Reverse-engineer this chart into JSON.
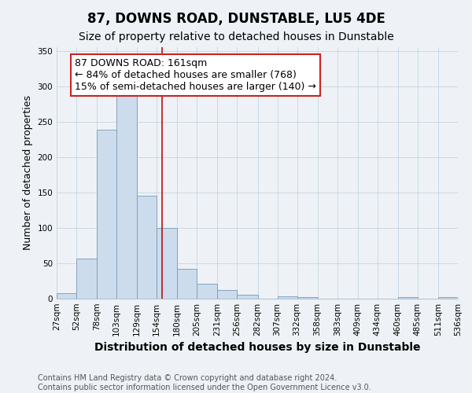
{
  "title": "87, DOWNS ROAD, DUNSTABLE, LU5 4DE",
  "subtitle": "Size of property relative to detached houses in Dunstable",
  "xlabel": "Distribution of detached houses by size in Dunstable",
  "ylabel": "Number of detached properties",
  "bin_edges": [
    27,
    52,
    78,
    103,
    129,
    154,
    180,
    205,
    231,
    256,
    282,
    307,
    332,
    358,
    383,
    409,
    434,
    460,
    485,
    511,
    536
  ],
  "bar_heights": [
    8,
    57,
    238,
    290,
    145,
    100,
    42,
    21,
    12,
    6,
    0,
    3,
    2,
    0,
    0,
    0,
    0,
    2,
    0,
    2
  ],
  "bar_color": "#ccdcec",
  "bar_edge_color": "#7799bb",
  "property_value": 161,
  "vline_color": "#bb1111",
  "annotation_text": "87 DOWNS ROAD: 161sqm\n← 84% of detached houses are smaller (768)\n15% of semi-detached houses are larger (140) →",
  "annotation_box_color": "#ffffff",
  "annotation_box_edge": "#cc2222",
  "ylim": [
    0,
    355
  ],
  "yticks": [
    0,
    50,
    100,
    150,
    200,
    250,
    300,
    350
  ],
  "footer_line1": "Contains HM Land Registry data © Crown copyright and database right 2024.",
  "footer_line2": "Contains public sector information licensed under the Open Government Licence v3.0.",
  "background_color": "#eef2f6",
  "title_fontsize": 12,
  "subtitle_fontsize": 10,
  "xlabel_fontsize": 10,
  "ylabel_fontsize": 9,
  "tick_label_fontsize": 7.5,
  "annotation_fontsize": 9,
  "footer_fontsize": 7
}
